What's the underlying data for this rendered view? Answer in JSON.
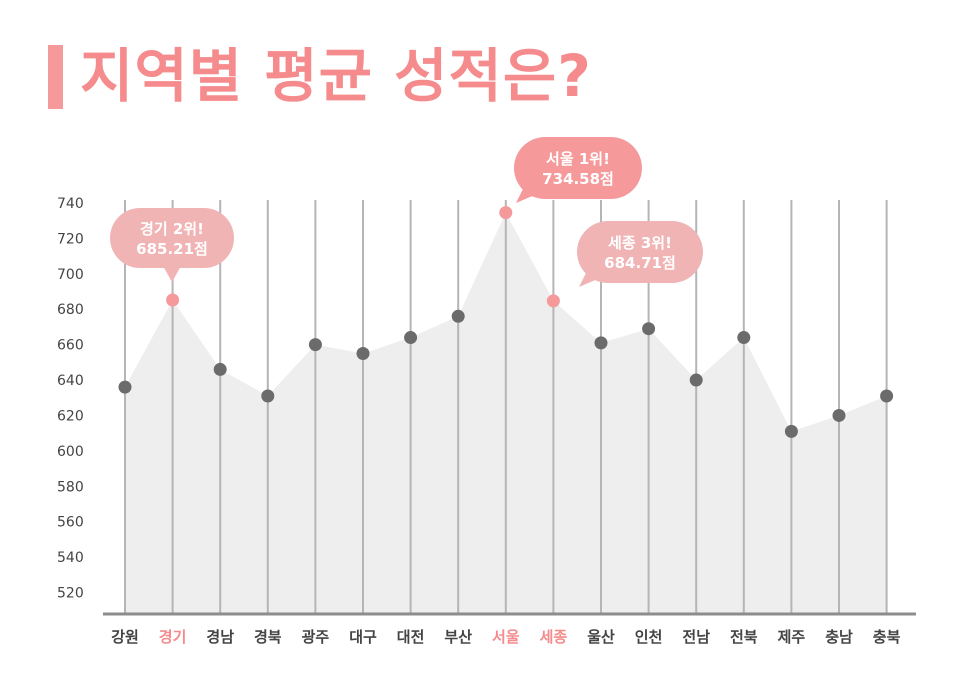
{
  "title": "지역별 평균 성적은?",
  "colors": {
    "accent": "#f58b8d",
    "callout_dark": "#f5999a",
    "callout_light": "#f0b4b5",
    "marker": "#6b6b6b",
    "area": "#eeeeee",
    "gridline": "#b5b5b5",
    "axis_text": "#444444"
  },
  "chart_data": {
    "type": "area",
    "title": "지역별 평균 성적은?",
    "xlabel": "",
    "ylabel": "",
    "categories": [
      "강원",
      "경기",
      "경남",
      "경북",
      "광주",
      "대구",
      "대전",
      "부산",
      "서울",
      "세종",
      "울산",
      "인천",
      "전남",
      "전북",
      "제주",
      "충남",
      "충북"
    ],
    "values": [
      636,
      685.21,
      646,
      631,
      660,
      655,
      664,
      676,
      734.58,
      684.71,
      661,
      669,
      640,
      664,
      611,
      620,
      631
    ],
    "ylim": [
      510,
      745
    ],
    "yticks": [
      520,
      540,
      560,
      580,
      600,
      620,
      640,
      660,
      680,
      700,
      720,
      740
    ],
    "grid": "vertical",
    "highlighted_categories": [
      "경기",
      "서울",
      "세종"
    ],
    "annotations": [
      {
        "category": "경기",
        "line1": "경기 2위!",
        "line2": "685.21점",
        "style": "light",
        "pointer": "down"
      },
      {
        "category": "서울",
        "line1": "서울 1위!",
        "line2": "734.58점",
        "style": "dark",
        "pointer": "left-down"
      },
      {
        "category": "세종",
        "line1": "세종 3위!",
        "line2": "684.71점",
        "style": "light",
        "pointer": "left-down"
      }
    ]
  }
}
